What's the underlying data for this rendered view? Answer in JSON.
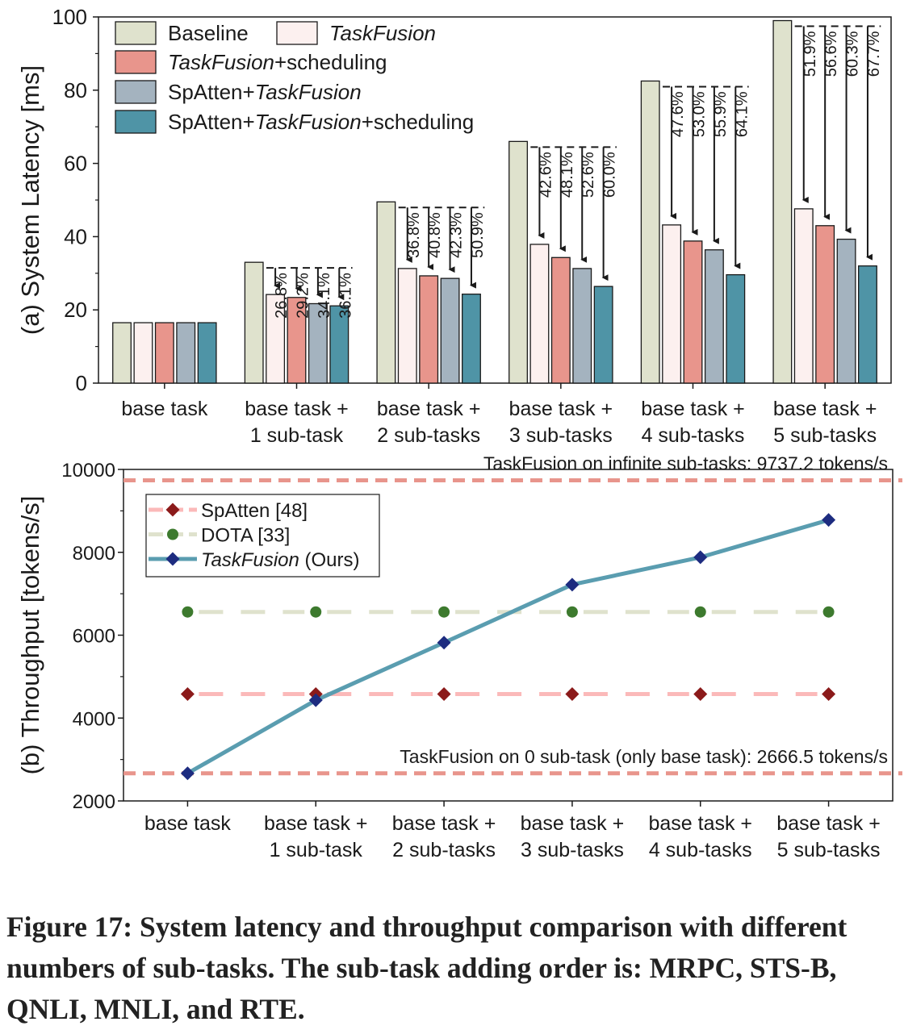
{
  "caption": "Figure 17: System latency and throughput comparison with different numbers of sub-tasks. The sub-task adding order is: MRPC, STS-B, QNLI, MNLI, and RTE.",
  "chart_data": [
    {
      "type": "bar",
      "ylabel": "(a) System Latency [ms]",
      "ylim": [
        0,
        100
      ],
      "yticks": [
        0,
        20,
        40,
        60,
        80,
        100
      ],
      "categories": [
        [
          "base task"
        ],
        [
          "base task +",
          "1 sub-task"
        ],
        [
          "base task +",
          "2 sub-tasks"
        ],
        [
          "base task +",
          "3 sub-tasks"
        ],
        [
          "base task +",
          "4 sub-tasks"
        ],
        [
          "base task +",
          "5 sub-tasks"
        ]
      ],
      "legend_position": "top-left",
      "series": [
        {
          "name": "Baseline",
          "legend_parts": [
            {
              "t": "Baseline",
              "i": false
            }
          ],
          "color": "#dfe2cd",
          "values": [
            16.5,
            33.0,
            49.5,
            66.0,
            82.5,
            99.0
          ]
        },
        {
          "name": "TaskFusion",
          "legend_parts": [
            {
              "t": "TaskFusion",
              "i": true
            }
          ],
          "color": "#fcf0ef",
          "values": [
            16.5,
            24.2,
            31.3,
            37.9,
            43.2,
            47.6
          ]
        },
        {
          "name": "TaskFusion+scheduling",
          "legend_parts": [
            {
              "t": "TaskFusion",
              "i": true
            },
            {
              "t": "+scheduling",
              "i": false
            }
          ],
          "color": "#e8958c",
          "values": [
            16.5,
            23.4,
            29.3,
            34.3,
            38.8,
            43.0
          ]
        },
        {
          "name": "SpAtten+TaskFusion",
          "legend_parts": [
            {
              "t": "SpAtten+",
              "i": false
            },
            {
              "t": "TaskFusion",
              "i": true
            }
          ],
          "color": "#a4b3bf",
          "values": [
            16.5,
            21.7,
            28.6,
            31.3,
            36.4,
            39.3
          ]
        },
        {
          "name": "SpAtten+TaskFusion+scheduling",
          "legend_parts": [
            {
              "t": "SpAtten+",
              "i": false
            },
            {
              "t": "TaskFusion",
              "i": true
            },
            {
              "t": "+scheduling",
              "i": false
            }
          ],
          "color": "#4f94a6",
          "values": [
            16.5,
            21.1,
            24.3,
            26.4,
            29.6,
            32.0
          ]
        }
      ],
      "annotations": [
        null,
        [
          "26.8%",
          "29.2%",
          "34.1%",
          "36.1%"
        ],
        [
          "36.8%",
          "40.8%",
          "42.3%",
          "50.9%"
        ],
        [
          "42.6%",
          "48.1%",
          "52.6%",
          "60.0%"
        ],
        [
          "47.6%",
          "53.0%",
          "55.9%",
          "64.1%"
        ],
        [
          "51.9%",
          "56.6%",
          "60.3%",
          "67.7%"
        ]
      ]
    },
    {
      "type": "line",
      "ylabel": "(b) Throughput [tokens/s]",
      "ylim": [
        2000,
        10000
      ],
      "yticks": [
        2000,
        4000,
        6000,
        8000,
        10000
      ],
      "categories": [
        [
          "base task"
        ],
        [
          "base task +",
          "1 sub-task"
        ],
        [
          "base task +",
          "2 sub-tasks"
        ],
        [
          "base task +",
          "3 sub-tasks"
        ],
        [
          "base task +",
          "4 sub-tasks"
        ],
        [
          "base task +",
          "5 sub-tasks"
        ]
      ],
      "legend_position": "top-left",
      "series": [
        {
          "name": "SpAtten [48]",
          "legend_parts": [
            {
              "t": "SpAtten [48]",
              "i": false
            }
          ],
          "line_color": "#fbb9b9",
          "marker_color": "#8b1a1a",
          "marker": "diamond",
          "dashed": true,
          "values": [
            4580,
            4580,
            4580,
            4580,
            4580,
            4580
          ]
        },
        {
          "name": "DOTA [33]",
          "legend_parts": [
            {
              "t": "DOTA [33]",
              "i": false
            }
          ],
          "line_color": "#dfe2cd",
          "marker_color": "#3d7a2e",
          "marker": "circle",
          "dashed": true,
          "values": [
            6560,
            6560,
            6560,
            6560,
            6560,
            6560
          ]
        },
        {
          "name": "TaskFusion (Ours)",
          "legend_parts": [
            {
              "t": "TaskFusion",
              "i": true
            },
            {
              "t": " (Ours)",
              "i": false
            }
          ],
          "line_color": "#5a9db0",
          "marker_color": "#1d2c80",
          "marker": "diamond",
          "dashed": false,
          "values": [
            2666.5,
            4430,
            5820,
            7220,
            7880,
            8780
          ]
        }
      ],
      "reference_lines": [
        {
          "value": 9737.2,
          "label": "TaskFusion on infinite sub-tasks: 9737.2 tokens/s",
          "color": "#e8958c"
        },
        {
          "value": 2666.5,
          "label": "TaskFusion on 0 sub-task (only base task): 2666.5 tokens/s",
          "color": "#e8958c"
        }
      ]
    }
  ]
}
